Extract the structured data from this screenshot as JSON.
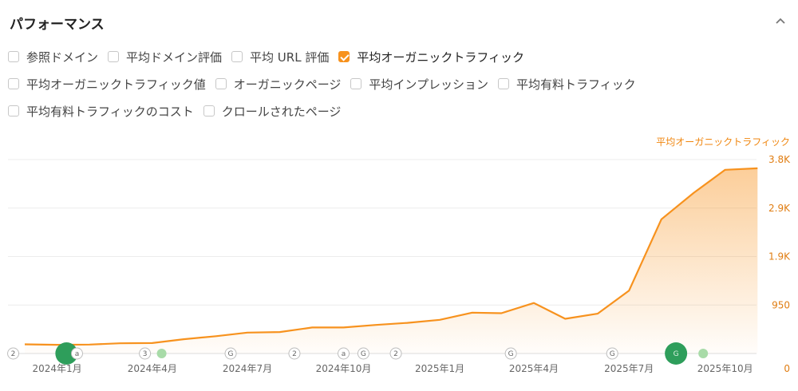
{
  "header": {
    "title": "パフォーマンス"
  },
  "metrics": {
    "row1": [
      {
        "label": "参照ドメイン",
        "checked": false
      },
      {
        "label": "平均ドメイン評価",
        "checked": false
      },
      {
        "label": "平均 URL 評価",
        "checked": false
      },
      {
        "label": "平均オーガニックトラフィック",
        "checked": true
      }
    ],
    "row2": [
      {
        "label": "平均オーガニックトラフィック値",
        "checked": false
      },
      {
        "label": "オーガニックページ",
        "checked": false
      },
      {
        "label": "平均インプレッション",
        "checked": false
      },
      {
        "label": "平均有料トラフィック",
        "checked": false
      }
    ],
    "row3": [
      {
        "label": "平均有料トラフィックのコスト",
        "checked": false
      },
      {
        "label": "クロールされたページ",
        "checked": false
      }
    ]
  },
  "chart_data": {
    "type": "area",
    "title": "",
    "ylabel": "平均オーガニックトラフィック",
    "ylim": [
      0,
      3800
    ],
    "y_ticks": [
      {
        "value": 0,
        "label": "0"
      },
      {
        "value": 950,
        "label": "950"
      },
      {
        "value": 1900,
        "label": "1.9K"
      },
      {
        "value": 2850,
        "label": "2.9K"
      },
      {
        "value": 3800,
        "label": "3.8K"
      }
    ],
    "x_range": [
      "2023-11-15",
      "2025-10-31"
    ],
    "x_ticks": [
      {
        "date": "2024-01-01",
        "label": "2024年1月"
      },
      {
        "date": "2024-04-01",
        "label": "2024年4月"
      },
      {
        "date": "2024-07-01",
        "label": "2024年7月"
      },
      {
        "date": "2024-10-01",
        "label": "2024年10月"
      },
      {
        "date": "2025-01-01",
        "label": "2025年1月"
      },
      {
        "date": "2025-04-01",
        "label": "2025年4月"
      },
      {
        "date": "2025-07-01",
        "label": "2025年7月"
      },
      {
        "date": "2025-10-01",
        "label": "2025年10月"
      }
    ],
    "series": [
      {
        "name": "平均オーガニックトラフィック",
        "color": "#f7921e",
        "points": [
          {
            "x": "2023-12-01",
            "y": 180
          },
          {
            "x": "2024-01-01",
            "y": 170
          },
          {
            "x": "2024-02-01",
            "y": 175
          },
          {
            "x": "2024-03-01",
            "y": 200
          },
          {
            "x": "2024-04-01",
            "y": 205
          },
          {
            "x": "2024-05-01",
            "y": 280
          },
          {
            "x": "2024-06-01",
            "y": 340
          },
          {
            "x": "2024-07-01",
            "y": 410
          },
          {
            "x": "2024-08-01",
            "y": 420
          },
          {
            "x": "2024-09-01",
            "y": 510
          },
          {
            "x": "2024-10-01",
            "y": 510
          },
          {
            "x": "2024-11-01",
            "y": 560
          },
          {
            "x": "2024-12-01",
            "y": 600
          },
          {
            "x": "2025-01-01",
            "y": 660
          },
          {
            "x": "2025-02-01",
            "y": 800
          },
          {
            "x": "2025-03-01",
            "y": 790
          },
          {
            "x": "2025-04-01",
            "y": 990
          },
          {
            "x": "2025-05-01",
            "y": 680
          },
          {
            "x": "2025-06-01",
            "y": 780
          },
          {
            "x": "2025-07-01",
            "y": 1230
          },
          {
            "x": "2025-08-01",
            "y": 2630
          },
          {
            "x": "2025-09-01",
            "y": 3150
          },
          {
            "x": "2025-10-01",
            "y": 3600
          },
          {
            "x": "2025-11-01",
            "y": 3630
          }
        ]
      }
    ],
    "annotations": [
      {
        "date": "2023-11-20",
        "kind": "count",
        "label": "2",
        "color": "#999999"
      },
      {
        "date": "2024-01-10",
        "kind": "update",
        "label": "",
        "color": "#2e9e5b"
      },
      {
        "date": "2024-01-20",
        "kind": "symbol",
        "label": "a",
        "color": "#999999"
      },
      {
        "date": "2024-03-25",
        "kind": "count",
        "label": "3",
        "color": "#999999"
      },
      {
        "date": "2024-04-10",
        "kind": "dot",
        "label": "",
        "color": "#a8dba8"
      },
      {
        "date": "2024-06-15",
        "kind": "google",
        "label": "G",
        "color": "#999999"
      },
      {
        "date": "2024-08-15",
        "kind": "count",
        "label": "2",
        "color": "#999999"
      },
      {
        "date": "2024-10-01",
        "kind": "symbol",
        "label": "a",
        "color": "#999999"
      },
      {
        "date": "2024-10-20",
        "kind": "google",
        "label": "G",
        "color": "#999999"
      },
      {
        "date": "2024-11-20",
        "kind": "count",
        "label": "2",
        "color": "#999999"
      },
      {
        "date": "2025-03-10",
        "kind": "google",
        "label": "G",
        "color": "#999999"
      },
      {
        "date": "2025-06-15",
        "kind": "google",
        "label": "G",
        "color": "#999999"
      },
      {
        "date": "2025-08-15",
        "kind": "update",
        "label": "G",
        "color": "#2e9e5b"
      },
      {
        "date": "2025-09-10",
        "kind": "dot",
        "label": "",
        "color": "#a8dba8"
      }
    ]
  }
}
